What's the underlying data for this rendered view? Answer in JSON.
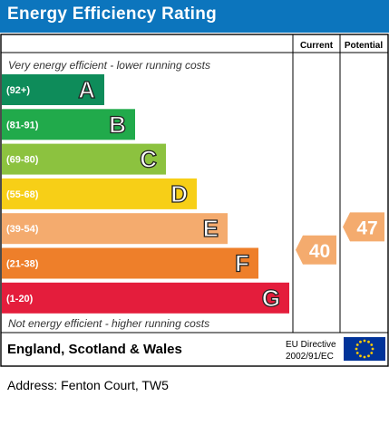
{
  "title": "Energy Efficiency Rating",
  "columns": {
    "current": "Current",
    "potential": "Potential"
  },
  "top_note": "Very energy efficient - lower running costs",
  "bottom_note": "Not energy efficient - higher running costs",
  "footer": {
    "region": "England, Scotland & Wales",
    "directive_line1": "EU Directive",
    "directive_line2": "2002/91/EC"
  },
  "address": "Address: Fenton Court, TW5",
  "chart_data": {
    "type": "bar",
    "categories": [
      "A",
      "B",
      "C",
      "D",
      "E",
      "F",
      "G"
    ],
    "ranges": [
      "(92+)",
      "(81-91)",
      "(69-80)",
      "(55-68)",
      "(39-54)",
      "(21-38)",
      "(1-20)"
    ],
    "band_min": [
      92,
      81,
      69,
      55,
      39,
      21,
      1
    ],
    "band_max": [
      100,
      91,
      80,
      68,
      54,
      38,
      20
    ],
    "colors": [
      "#0e8c5a",
      "#21aa4b",
      "#8cc23f",
      "#f7cf17",
      "#f4ab6e",
      "#ee7f2a",
      "#e41d3c"
    ],
    "current": {
      "label": "Current",
      "value": 40,
      "band": "E",
      "color": "#f4ab6e"
    },
    "potential": {
      "label": "Potential",
      "value": 47,
      "band": "E",
      "color": "#f4ab6e"
    }
  }
}
